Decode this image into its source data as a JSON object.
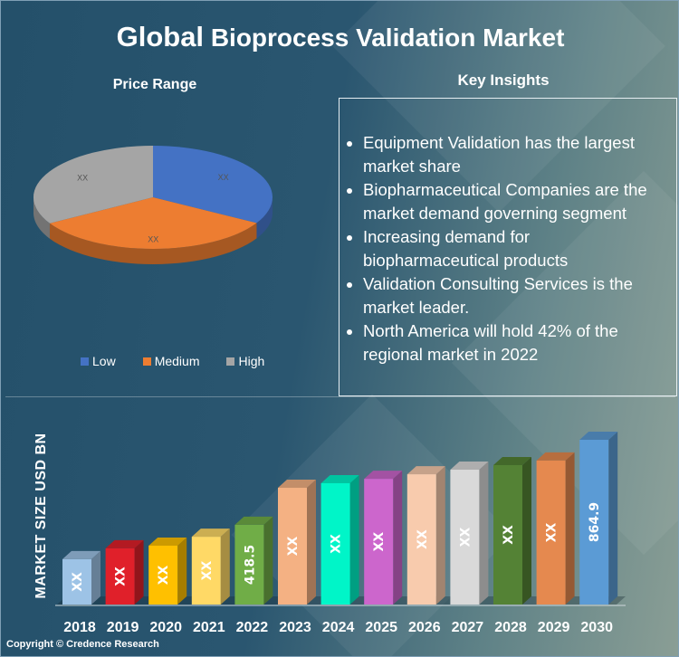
{
  "title": {
    "part1": "Global",
    "part2": "Bioprocess Validation Market"
  },
  "copyright": "Copyright © Credence Research",
  "insights": {
    "title": "Key Insights",
    "items": [
      "Equipment Validation has the largest market share",
      "Biopharmaceutical Companies are the market demand governing segment",
      "Increasing demand for biopharmaceutical products",
      "Validation Consulting Services is the market leader.",
      "North America will hold 42% of the regional market in 2022"
    ]
  },
  "chart_data": [
    {
      "type": "pie",
      "title": "Price Range",
      "categories": [
        "Low",
        "Medium",
        "High"
      ],
      "values": [
        33.3,
        33.3,
        33.4
      ],
      "labels": [
        "XX",
        "XX",
        "XX"
      ],
      "colors": [
        "#4472c4",
        "#ed7d31",
        "#a5a5a5"
      ],
      "legend": "bottom"
    },
    {
      "type": "bar",
      "title": "",
      "ylabel": "MARKET SIZE USD BN",
      "xlabel": "",
      "categories": [
        "2018",
        "2019",
        "2020",
        "2021",
        "2022",
        "2023",
        "2024",
        "2025",
        "2026",
        "2027",
        "2028",
        "2029",
        "2030"
      ],
      "values": [
        238,
        295,
        309,
        356,
        418.5,
        613,
        637,
        660,
        684,
        708,
        732,
        756,
        864.9
      ],
      "labels": [
        "XX",
        "XX",
        "XX",
        "XX",
        "418.5",
        "XX",
        "XX",
        "XX",
        "XX",
        "XX",
        "XX",
        "XX",
        "864.9"
      ],
      "colors": [
        "#9dc3e6",
        "#e0202a",
        "#ffc000",
        "#ffd966",
        "#70ad47",
        "#f4b183",
        "#00f5c8",
        "#cc66cc",
        "#f8cbad",
        "#d9d9d9",
        "#548235",
        "#e5894f",
        "#5b9bd5"
      ],
      "ylim": [
        0,
        900
      ],
      "grid": false
    }
  ]
}
